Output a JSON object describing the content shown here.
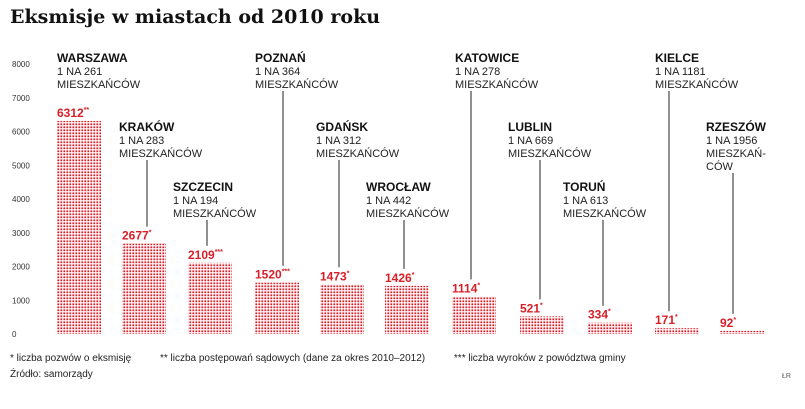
{
  "title": "Eksmisje w miastach od 2010 roku",
  "chart_data": {
    "type": "bar",
    "title": "Eksmisje w miastach od 2010 roku",
    "ylim": [
      0,
      8000
    ],
    "yticks": [
      "8000",
      "7000",
      "6000",
      "5000",
      "4000",
      "3000",
      "2000",
      "1000",
      "0"
    ],
    "bars": [
      {
        "city": "WARSZAWA",
        "ratio": [
          "1 NA 261",
          "MIESZKAŃCÓW"
        ],
        "value": 6312,
        "value_label": "6312",
        "mark": "**"
      },
      {
        "city": "KRAKÓW",
        "ratio": [
          "1 NA 283",
          "MIESZKAŃCÓW"
        ],
        "value": 2677,
        "value_label": "2677",
        "mark": "*"
      },
      {
        "city": "SZCZECIN",
        "ratio": [
          "1 NA 194",
          "MIESZKAŃCÓW"
        ],
        "value": 2109,
        "value_label": "2109",
        "mark": "***"
      },
      {
        "city": "POZNAŃ",
        "ratio": [
          "1 NA 364",
          "MIESZKAŃCÓW"
        ],
        "value": 1520,
        "value_label": "1520",
        "mark": "***"
      },
      {
        "city": "GDAŃSK",
        "ratio": [
          "1 NA 312",
          "MIESZKAŃCÓW"
        ],
        "value": 1473,
        "value_label": "1473",
        "mark": "*"
      },
      {
        "city": "WROCŁAW",
        "ratio": [
          "1 NA 442",
          "MIESZKAŃCÓW"
        ],
        "value": 1426,
        "value_label": "1426",
        "mark": "*"
      },
      {
        "city": "KATOWICE",
        "ratio": [
          "1 NA 278",
          "MIESZKAŃCÓW"
        ],
        "value": 1114,
        "value_label": "1114",
        "mark": "*"
      },
      {
        "city": "LUBLIN",
        "ratio": [
          "1 NA 669",
          "MIESZKAŃCÓW"
        ],
        "value": 521,
        "value_label": "521",
        "mark": "*"
      },
      {
        "city": "TORUŃ",
        "ratio": [
          "1 NA 613",
          "MIESZKAŃCÓW"
        ],
        "value": 334,
        "value_label": "334",
        "mark": "*"
      },
      {
        "city": "KIELCE",
        "ratio": [
          "1 NA 1181",
          "MIESZKAŃCÓW"
        ],
        "value": 171,
        "value_label": "171",
        "mark": "*"
      },
      {
        "city": "RZESZÓW",
        "ratio": [
          "1 NA 1956",
          "MIESZKAŃ-",
          "CÓW"
        ],
        "value": 92,
        "value_label": "92",
        "mark": "*"
      }
    ]
  },
  "footnotes": [
    "* liczba pozwów o eksmisję",
    "** liczba postępowań sądowych (dane za okres 2010–2012)",
    "*** liczba wyroków z powództwa gminy"
  ],
  "source": "Źródło: samorządy",
  "credit": "ŁR",
  "colors": {
    "bar": "#d81e27",
    "text": "#222222",
    "label": "#d81e27"
  }
}
